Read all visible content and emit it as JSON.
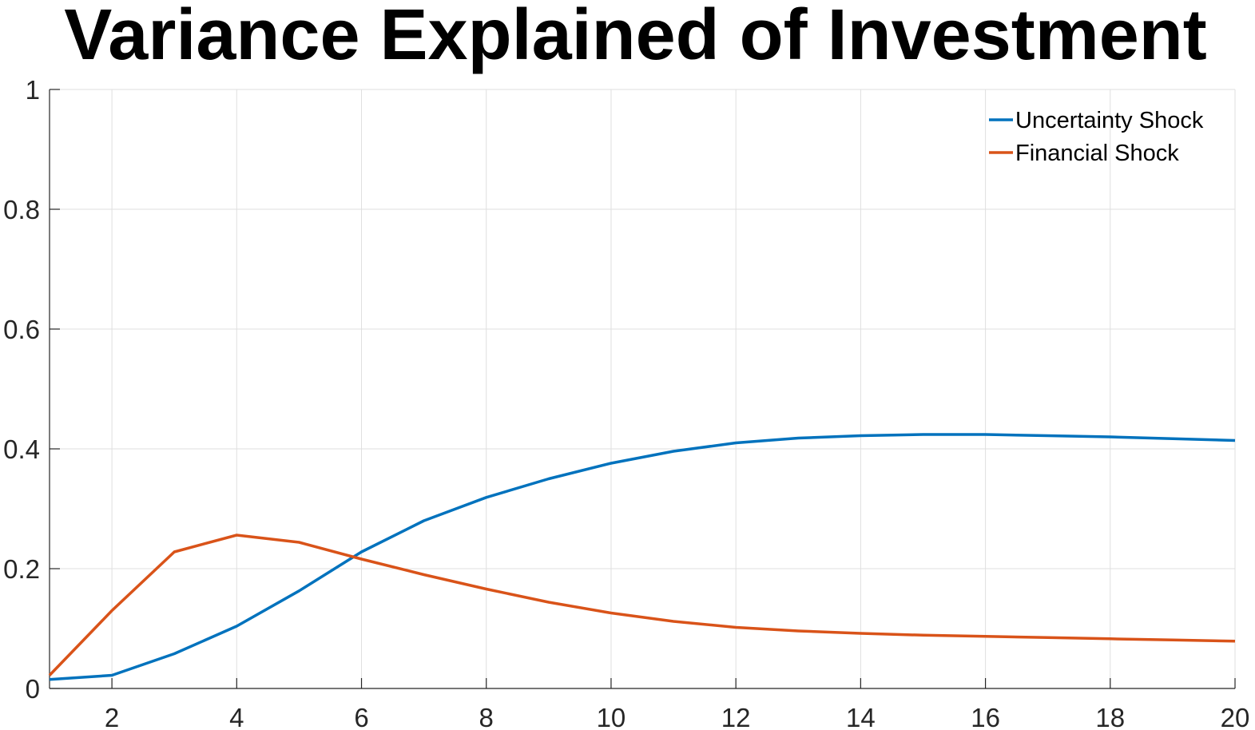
{
  "chart_data": {
    "type": "line",
    "title": "Variance Explained of Investment",
    "xlabel": "",
    "ylabel": "",
    "xlim": [
      1,
      20
    ],
    "ylim": [
      0,
      1
    ],
    "xticks": [
      2,
      4,
      6,
      8,
      10,
      12,
      14,
      16,
      18,
      20
    ],
    "yticks": [
      0,
      0.2,
      0.4,
      0.6,
      0.8,
      1
    ],
    "ytick_labels": [
      "0",
      "0.2",
      "0.4",
      "0.6",
      "0.8",
      "1"
    ],
    "grid": true,
    "legend_position": "top-right",
    "x": [
      1,
      2,
      3,
      4,
      5,
      6,
      7,
      8,
      9,
      10,
      11,
      12,
      13,
      14,
      15,
      16,
      17,
      18,
      19,
      20
    ],
    "series": [
      {
        "name": "Uncertainty Shock",
        "color": "#0072BD",
        "values": [
          0.015,
          0.022,
          0.058,
          0.104,
          0.163,
          0.228,
          0.28,
          0.319,
          0.35,
          0.376,
          0.396,
          0.41,
          0.418,
          0.422,
          0.424,
          0.424,
          0.422,
          0.42,
          0.417,
          0.414
        ]
      },
      {
        "name": "Financial Shock",
        "color": "#D95319",
        "values": [
          0.022,
          0.13,
          0.228,
          0.256,
          0.244,
          0.216,
          0.19,
          0.166,
          0.144,
          0.126,
          0.112,
          0.102,
          0.096,
          0.092,
          0.089,
          0.087,
          0.085,
          0.083,
          0.081,
          0.079
        ]
      }
    ]
  }
}
